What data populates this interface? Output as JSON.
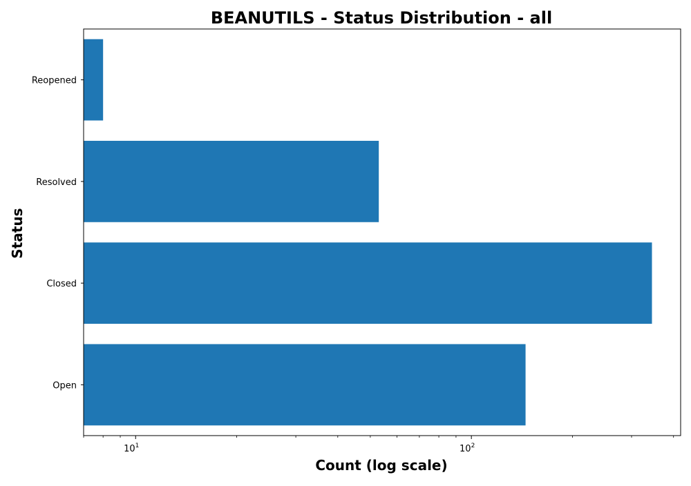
{
  "chart_data": {
    "type": "bar",
    "orientation": "horizontal",
    "title": "BEANUTILS - Status Distribution - all",
    "xlabel": "Count (log scale)",
    "ylabel": "Status",
    "x_scale": "log",
    "xlim": [
      7.0,
      420
    ],
    "categories": [
      "Reopened",
      "Resolved",
      "Closed",
      "Open"
    ],
    "values": [
      8,
      53,
      345,
      145
    ],
    "bar_color": "#1f77b4",
    "grid": false,
    "legend": "none",
    "x_ticks": [
      {
        "value": 10,
        "base": "10",
        "exp": "1"
      },
      {
        "value": 100,
        "base": "10",
        "exp": "2"
      }
    ]
  }
}
